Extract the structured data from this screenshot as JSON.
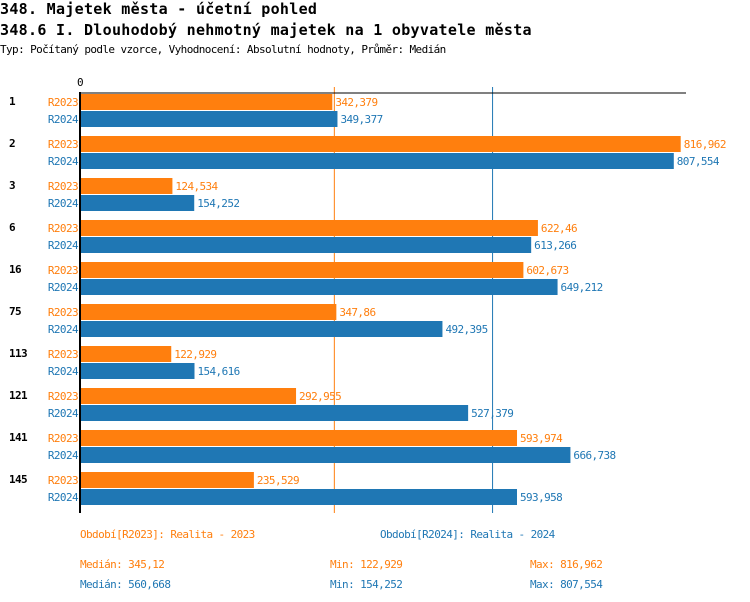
{
  "header": {
    "title": "348. Majetek města - účetní pohled",
    "subtitle": "348.6 I. Dlouhodobý nehmotný majetek na 1 obyvatele města",
    "info": "Typ: Počítaný podle vzorce, Vyhodnocení: Absolutní hodnoty, Průměr: Medián"
  },
  "chart_data": {
    "type": "bar",
    "orientation": "horizontal",
    "axis_zero_label": "0",
    "categories": [
      "1",
      "2",
      "3",
      "6",
      "16",
      "75",
      "113",
      "121",
      "141",
      "145"
    ],
    "series": [
      {
        "name": "R2023",
        "color": "#ff7f0e",
        "values": [
          342.379,
          816.962,
          124.534,
          622.46,
          602.673,
          347.86,
          122.929,
          292.955,
          593.974,
          235.529
        ],
        "labels": [
          "342,379",
          "816,962",
          "124,534",
          "622,46",
          "602,673",
          "347,86",
          "122,929",
          "292,955",
          "593,974",
          "235,529"
        ]
      },
      {
        "name": "R2024",
        "color": "#1f77b4",
        "values": [
          349.377,
          807.554,
          154.252,
          613.266,
          649.212,
          492.395,
          154.616,
          527.379,
          666.738,
          593.958
        ],
        "labels": [
          "349,377",
          "807,554",
          "154,252",
          "613,266",
          "649,212",
          "492,395",
          "154,616",
          "527,379",
          "666,738",
          "593,958"
        ]
      }
    ],
    "median_lines": [
      345.12,
      560.668
    ],
    "xlim": [
      0,
      816.962
    ],
    "legend": [
      {
        "text": "Období[R2023]: Realita - 2023",
        "color": "#ff7f0e"
      },
      {
        "text": "Období[R2024]: Realita - 2024",
        "color": "#1f77b4"
      }
    ],
    "stats": [
      {
        "median": "Medián: 345,12",
        "min": "Min: 122,929",
        "max": "Max: 816,962",
        "color": "#ff7f0e"
      },
      {
        "median": "Medián: 560,668",
        "min": "Min: 154,252",
        "max": "Max: 807,554",
        "color": "#1f77b4"
      }
    ]
  }
}
